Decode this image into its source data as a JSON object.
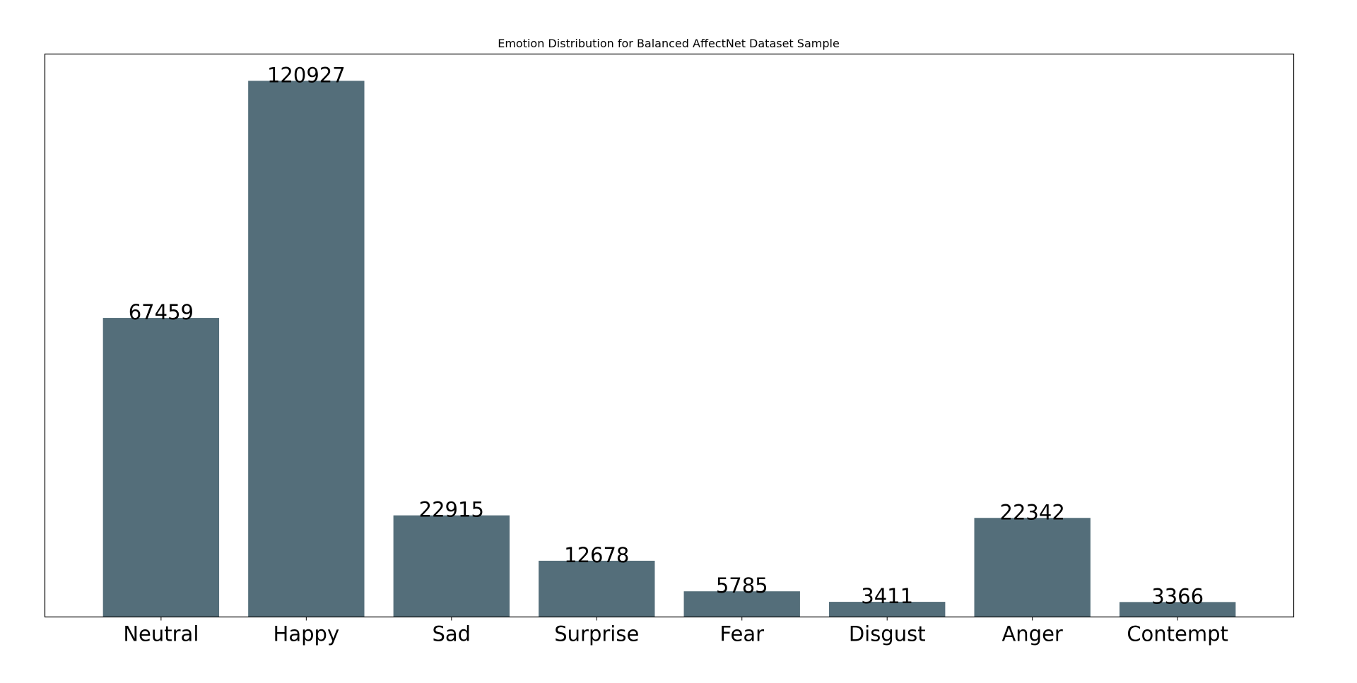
{
  "chart_data": {
    "type": "bar",
    "title": "Emotion Distribution for Balanced AffectNet Dataset Sample",
    "xlabel": "",
    "ylabel": "",
    "categories": [
      "Neutral",
      "Happy",
      "Sad",
      "Surprise",
      "Fear",
      "Disgust",
      "Anger",
      "Contempt"
    ],
    "values": [
      67459,
      120927,
      22915,
      12678,
      5785,
      3411,
      22342,
      3366
    ],
    "data_labels": [
      "67459",
      "120927",
      "22915",
      "12678",
      "5785",
      "3411",
      "22342",
      "3366"
    ],
    "ylim": [
      0,
      126973
    ],
    "bar_color": "#546e7a",
    "grid": false,
    "y_ticks_visible": false,
    "legend": "none"
  }
}
